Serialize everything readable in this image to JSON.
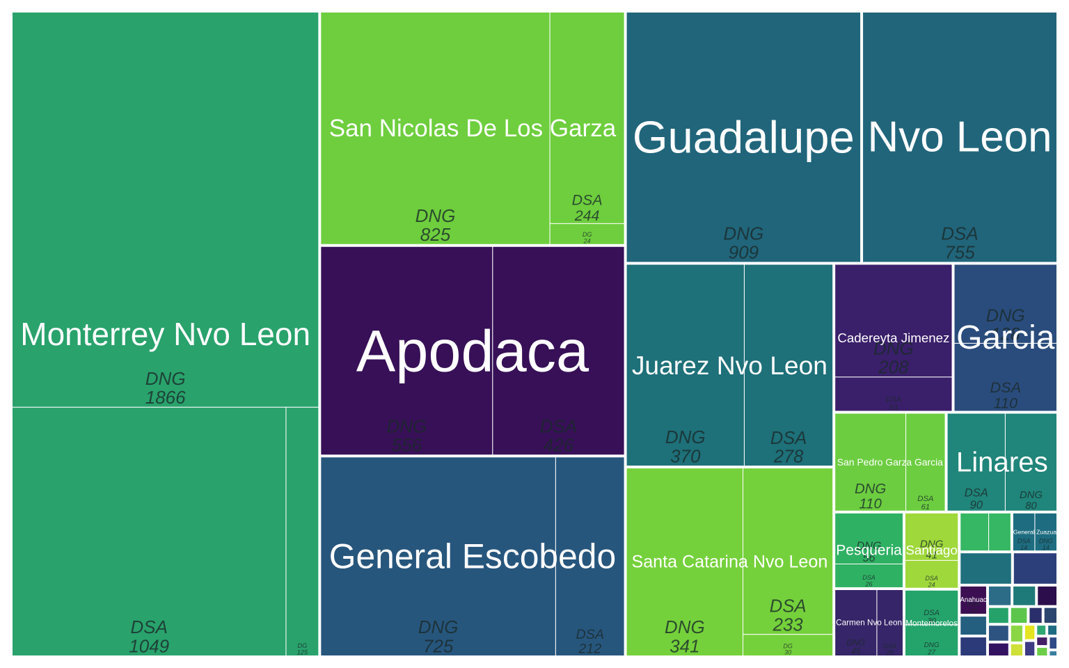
{
  "chart_data": {
    "type": "treemap",
    "title": "",
    "groups": [
      {
        "name": "Monterrey Nvo Leon",
        "color": "#29a26c",
        "children": [
          {
            "label": "DNG",
            "value": 1866
          },
          {
            "label": "DSA",
            "value": 1049
          },
          {
            "label": "DG",
            "value": 125
          }
        ]
      },
      {
        "name": "Guadalupe",
        "color": "#21657b",
        "children": [
          {
            "label": "DNG",
            "value": 909
          }
        ]
      },
      {
        "name": "Nvo Leon",
        "color": "#21657b",
        "children": [
          {
            "label": "DSA",
            "value": 755
          }
        ]
      },
      {
        "name": "San Nicolas De Los Garza",
        "color": "#6ece3d",
        "children": [
          {
            "label": "DNG",
            "value": 825
          },
          {
            "label": "DSA",
            "value": 244
          },
          {
            "label": "DG",
            "value": 24
          }
        ]
      },
      {
        "name": "General Escobedo",
        "color": "#27567d",
        "children": [
          {
            "label": "DNG",
            "value": 725
          },
          {
            "label": "DSA",
            "value": 212
          }
        ]
      },
      {
        "name": "Apodaca",
        "color": "#371057",
        "children": [
          {
            "label": "DNG",
            "value": 556
          },
          {
            "label": "DSA",
            "value": 426
          }
        ]
      },
      {
        "name": "Juarez  Nvo Leon",
        "color": "#1e7079",
        "children": [
          {
            "label": "DNG",
            "value": 370
          },
          {
            "label": "DSA",
            "value": 278
          }
        ]
      },
      {
        "name": "Santa Catarina Nvo Leon",
        "color": "#75d13b",
        "children": [
          {
            "label": "DNG",
            "value": 341
          },
          {
            "label": "DSA",
            "value": 233
          },
          {
            "label": "DG",
            "value": 30
          }
        ]
      },
      {
        "name": "Garcia",
        "color": "#2a4c7c",
        "children": [
          {
            "label": "DNG",
            "value": 128
          },
          {
            "label": "DSA",
            "value": 110
          }
        ]
      },
      {
        "name": "Cadereyta Jimenez",
        "color": "#3a1f6a",
        "children": [
          {
            "label": "DNG",
            "value": 208
          },
          {
            "label": "DSA",
            "value": 63
          }
        ]
      },
      {
        "name": "Linares",
        "color": "#20857a",
        "children": [
          {
            "label": "DNG",
            "value": 80
          },
          {
            "label": "DSA",
            "value": 90
          }
        ]
      },
      {
        "name": "San Pedro Garza Garcia",
        "color": "#6ccd40",
        "children": [
          {
            "label": "DNG",
            "value": 110
          },
          {
            "label": "DSA",
            "value": 61
          }
        ]
      },
      {
        "name": "Pesqueria",
        "color": "#2fb163",
        "children": [
          {
            "label": "DNG",
            "value": 56
          },
          {
            "label": "DSA",
            "value": 26
          }
        ]
      },
      {
        "name": "Carmen  Nvo Leon",
        "color": "#362568",
        "children": [
          {
            "label": "DNG",
            "value": 45
          },
          {
            "label": "DSA",
            "value": 28
          }
        ]
      },
      {
        "name": "Santiago",
        "color": "#9fd83b",
        "children": [
          {
            "label": "DNG",
            "value": 41
          },
          {
            "label": "DSA",
            "value": 24
          }
        ]
      },
      {
        "name": "Montemorelos",
        "color": "#24a36b",
        "children": [
          {
            "label": "DNG",
            "value": 27
          },
          {
            "label": "DSA",
            "value": 30
          }
        ]
      },
      {
        "name": "General Zuazua",
        "color": "#1e6c80",
        "children": [
          {
            "label": "DSA",
            "value": 14
          },
          {
            "label": "DNG",
            "value": 14
          }
        ]
      },
      {
        "name": "Anahuac",
        "color": "#3b0f52",
        "children": [
          {
            "label": "DSA",
            "value": 13
          }
        ]
      }
    ],
    "unlabeled_groups": [
      {
        "color": "#1f6f7d",
        "values": [
          27
        ]
      },
      {
        "color": "#2d3f7a",
        "values": [
          23
        ]
      },
      {
        "color": "#36b763",
        "values": [
          18,
          14
        ]
      },
      {
        "color": "#255f80",
        "values": [
          9
        ]
      },
      {
        "color": "#2c6c87",
        "values": [
          8
        ]
      },
      {
        "color": "#2d3a79",
        "values": [
          9
        ]
      },
      {
        "color": "#2c0e4c",
        "values": [
          7
        ]
      },
      {
        "color": "#1e7a78",
        "values": [
          8
        ]
      },
      {
        "color": "#25a26a",
        "values": [
          6
        ]
      },
      {
        "color": "#2d5380",
        "values": [
          6
        ]
      },
      {
        "color": "#331262",
        "values": [
          5
        ]
      },
      {
        "color": "#5bc64b",
        "values": [
          5
        ]
      },
      {
        "color": "#2a2f6b",
        "values": [
          4
        ]
      },
      {
        "color": "#2c456f",
        "values": [
          4
        ]
      },
      {
        "color": "#8bd645",
        "values": [
          4
        ]
      },
      {
        "color": "#cfe039",
        "values": [
          3
        ]
      },
      {
        "color": "#e5e420",
        "values": [
          3
        ]
      },
      {
        "color": "#3c3b83",
        "values": [
          3
        ]
      },
      {
        "color": "#30a773",
        "values": [
          2
        ]
      },
      {
        "color": "#1e6c82",
        "values": [
          2
        ]
      },
      {
        "color": "#441d67",
        "values": [
          2
        ]
      },
      {
        "color": "#6ccd48",
        "values": [
          2
        ]
      },
      {
        "color": "#2f4a86",
        "values": [
          2
        ]
      },
      {
        "color": "#3b7fa0",
        "values": [
          1
        ]
      }
    ]
  }
}
